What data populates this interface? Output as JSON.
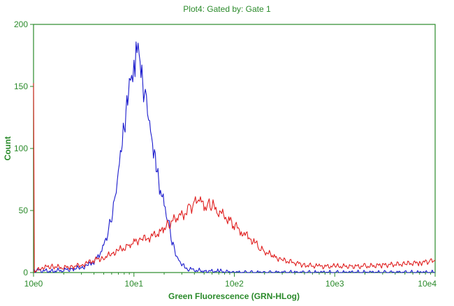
{
  "chart_data": {
    "type": "line",
    "title": "Plot4:  Gated by: Gate 1",
    "xlabel": "Green Fluorescence (GRN-HLog)",
    "ylabel": "Count",
    "x_scale": "log",
    "xlim": [
      1,
      10000
    ],
    "ylim": [
      0,
      200
    ],
    "x_ticks": [
      1,
      10,
      100,
      1000,
      10000
    ],
    "x_tick_labels": [
      "10e0",
      "10e1",
      "10e2",
      "10e3",
      "10e4"
    ],
    "y_ticks": [
      0,
      50,
      100,
      150,
      200
    ],
    "y_tick_labels": [
      "0",
      "50",
      "100",
      "150",
      "200"
    ],
    "grid": false,
    "legend": "none",
    "series": [
      {
        "color": "#1a1acc",
        "points": [
          [
            1.0,
            2
          ],
          [
            1.5,
            1
          ],
          [
            2.0,
            2
          ],
          [
            2.5,
            3
          ],
          [
            3.0,
            4
          ],
          [
            3.5,
            6
          ],
          [
            4.0,
            9
          ],
          [
            4.5,
            14
          ],
          [
            5.0,
            22
          ],
          [
            5.5,
            32
          ],
          [
            6.0,
            45
          ],
          [
            6.5,
            62
          ],
          [
            7.0,
            80
          ],
          [
            7.5,
            100
          ],
          [
            8.0,
            118
          ],
          [
            8.5,
            135
          ],
          [
            9.0,
            150
          ],
          [
            9.5,
            160
          ],
          [
            10.0,
            165
          ],
          [
            10.5,
            172
          ],
          [
            11.0,
            180
          ],
          [
            11.5,
            170
          ],
          [
            12.0,
            158
          ],
          [
            13.0,
            140
          ],
          [
            14.0,
            125
          ],
          [
            15.0,
            110
          ],
          [
            16.0,
            95
          ],
          [
            17.0,
            82
          ],
          [
            18.0,
            68
          ],
          [
            20.0,
            55
          ],
          [
            22.0,
            42
          ],
          [
            24.0,
            25
          ],
          [
            26.0,
            16
          ],
          [
            28.0,
            10
          ],
          [
            30.0,
            6
          ],
          [
            35.0,
            3
          ],
          [
            40.0,
            2
          ],
          [
            50.0,
            1
          ],
          [
            70.0,
            1
          ],
          [
            100.0,
            0
          ],
          [
            200.0,
            0
          ],
          [
            400.0,
            0
          ],
          [
            1000.0,
            0
          ],
          [
            10000.0,
            0
          ]
        ]
      },
      {
        "color": "#e02020",
        "points": [
          [
            1.0,
            150
          ],
          [
            1.02,
            0
          ],
          [
            1.2,
            4
          ],
          [
            1.5,
            5
          ],
          [
            2.0,
            4
          ],
          [
            2.5,
            5
          ],
          [
            3.0,
            6
          ],
          [
            3.5,
            8
          ],
          [
            4.0,
            10
          ],
          [
            5.0,
            12
          ],
          [
            6.0,
            15
          ],
          [
            7.0,
            18
          ],
          [
            8.0,
            20
          ],
          [
            9.0,
            22
          ],
          [
            10.0,
            25
          ],
          [
            12.0,
            27
          ],
          [
            14.0,
            28
          ],
          [
            16.0,
            30
          ],
          [
            18.0,
            32
          ],
          [
            20.0,
            36
          ],
          [
            22.0,
            38
          ],
          [
            25.0,
            42
          ],
          [
            28.0,
            45
          ],
          [
            32.0,
            48
          ],
          [
            36.0,
            52
          ],
          [
            40.0,
            55
          ],
          [
            45.0,
            60
          ],
          [
            50.0,
            52
          ],
          [
            55.0,
            56
          ],
          [
            60.0,
            54
          ],
          [
            70.0,
            50
          ],
          [
            80.0,
            45
          ],
          [
            90.0,
            42
          ],
          [
            100.0,
            38
          ],
          [
            120.0,
            33
          ],
          [
            140.0,
            28
          ],
          [
            160.0,
            24
          ],
          [
            180.0,
            20
          ],
          [
            200.0,
            17
          ],
          [
            250.0,
            13
          ],
          [
            300.0,
            10
          ],
          [
            400.0,
            8
          ],
          [
            500.0,
            6
          ],
          [
            700.0,
            5
          ],
          [
            1000.0,
            5
          ],
          [
            1500.0,
            5
          ],
          [
            2000.0,
            5
          ],
          [
            3000.0,
            6
          ],
          [
            5000.0,
            7
          ],
          [
            7000.0,
            8
          ],
          [
            9000.0,
            9
          ],
          [
            10000.0,
            10
          ]
        ]
      }
    ]
  }
}
